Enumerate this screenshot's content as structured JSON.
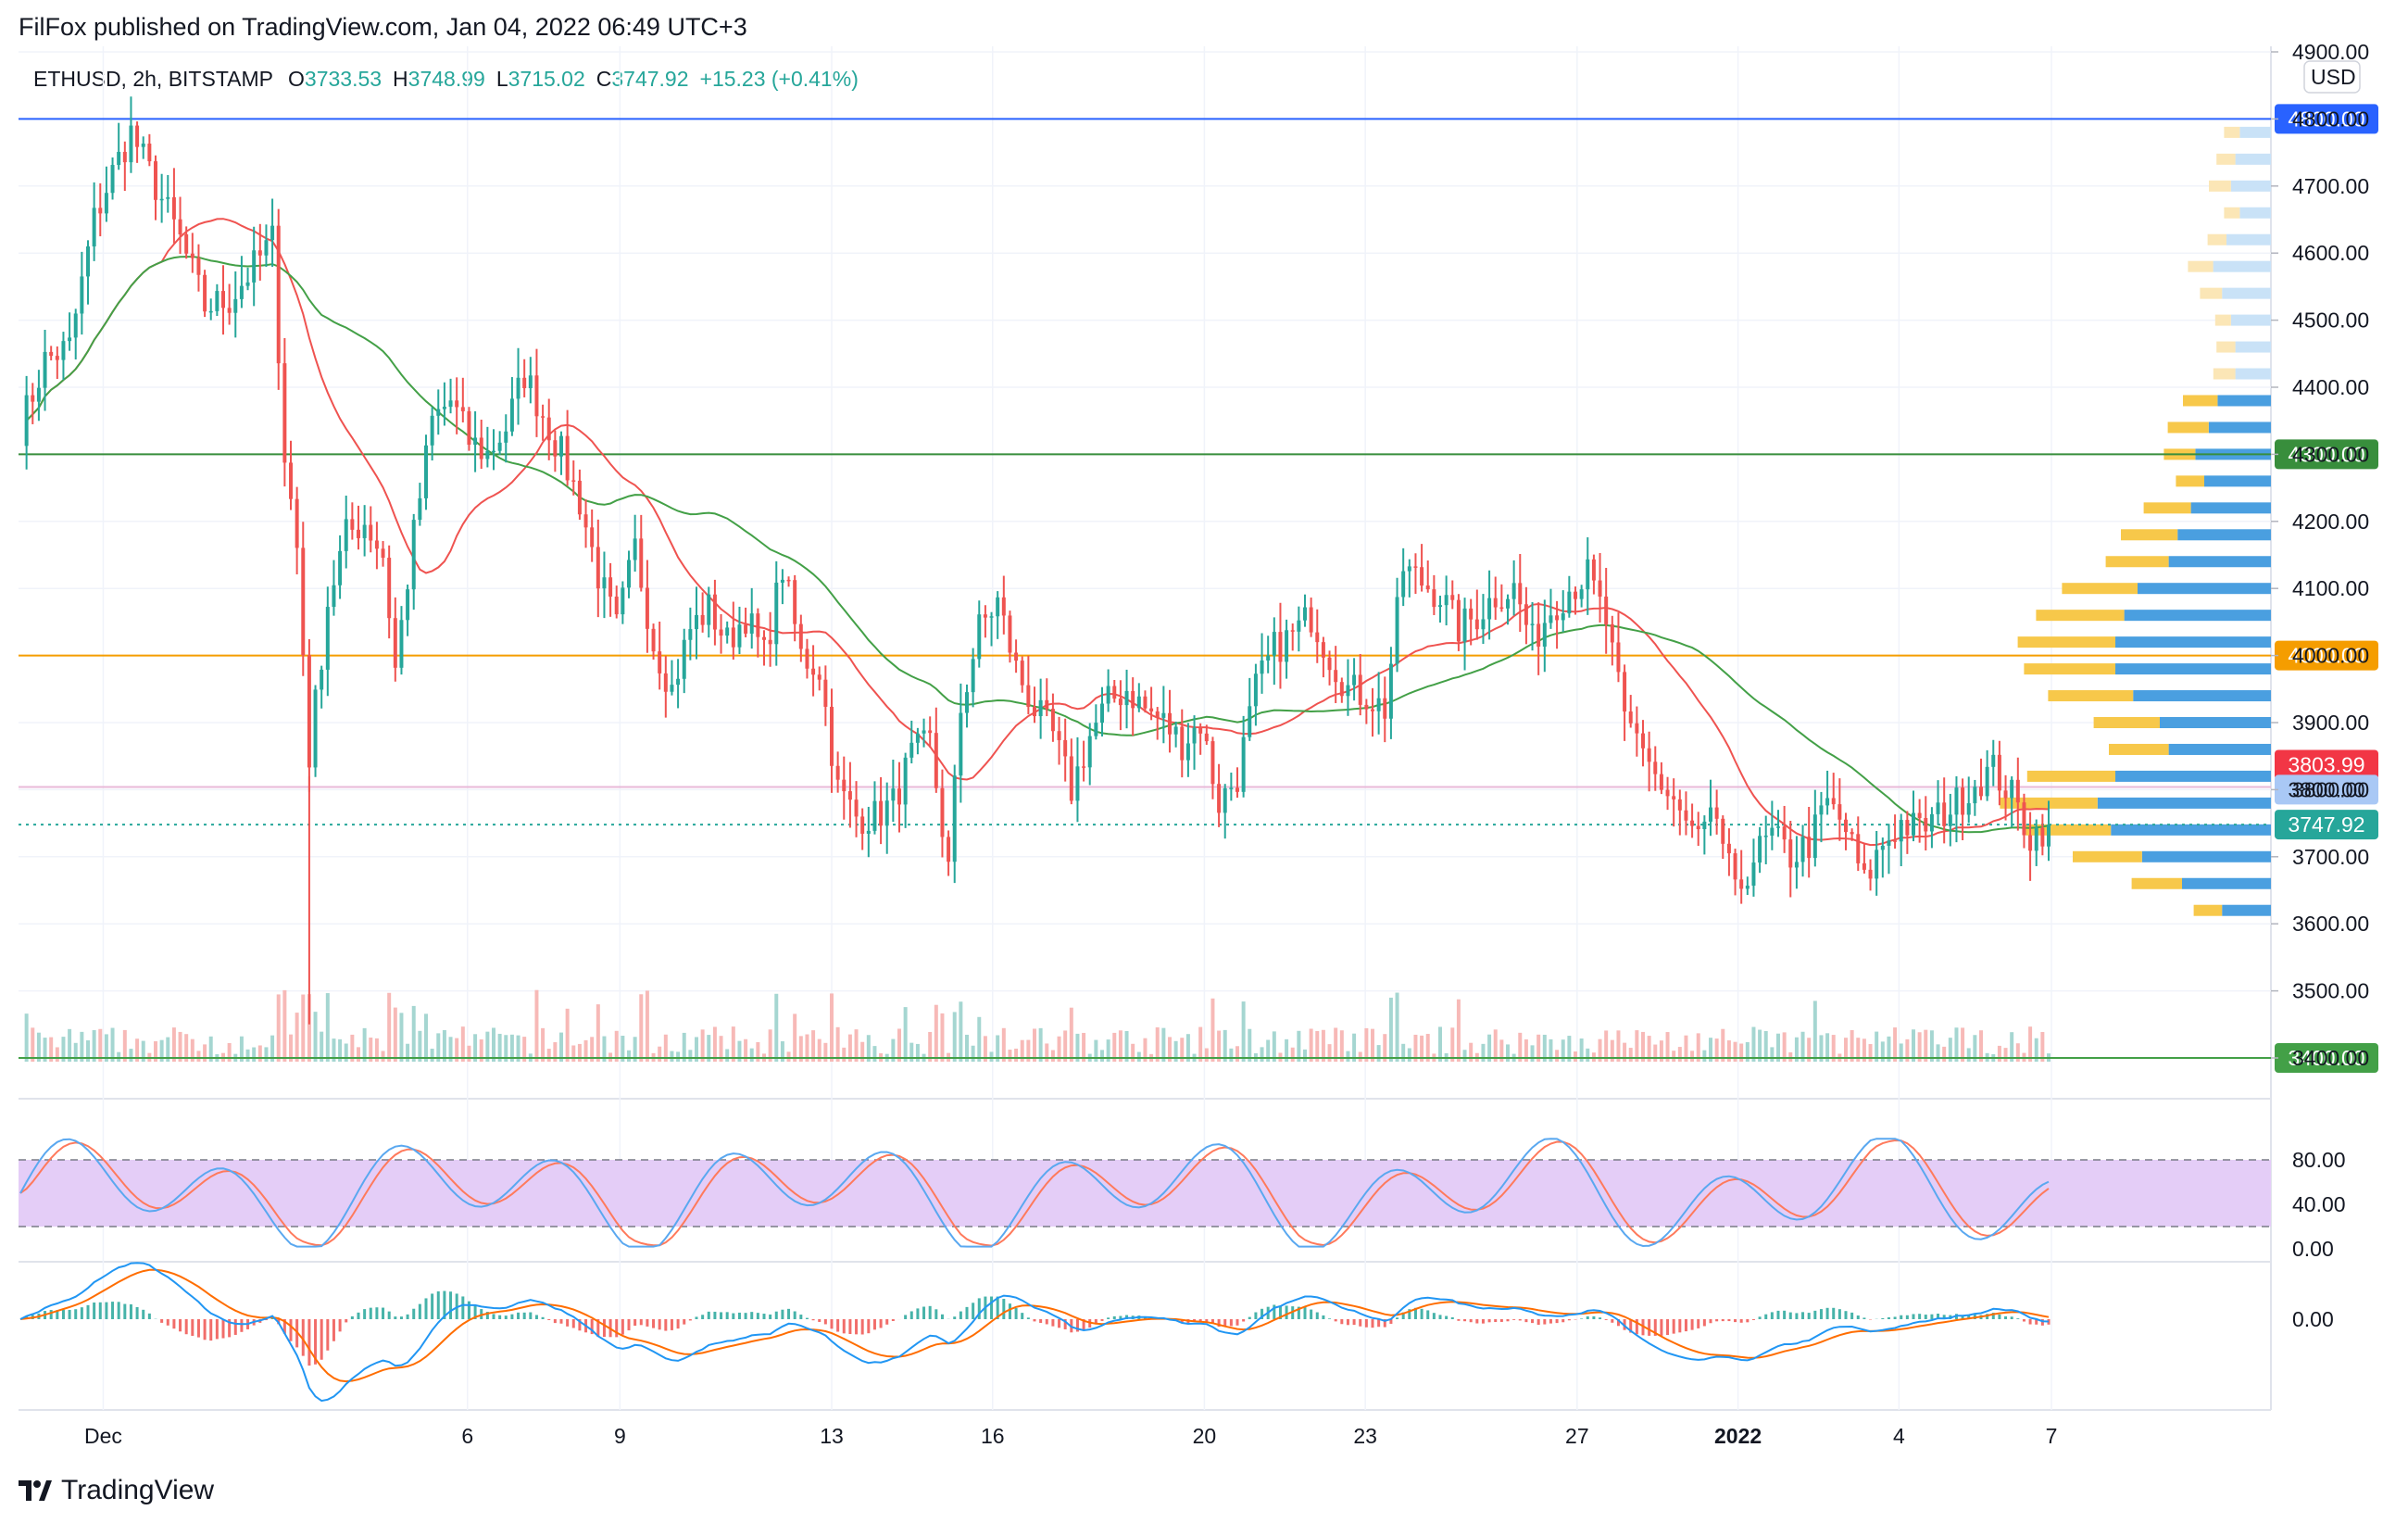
{
  "header": {
    "published": "FilFox published on TradingView.com, Jan 04, 2022 06:49 UTC+3"
  },
  "legend": {
    "symbol": "ETHUSD, 2h, BITSTAMP",
    "o_label": "O",
    "o_value": "3733.53",
    "h_label": "H",
    "h_value": "3748.99",
    "l_label": "L",
    "l_value": "3715.02",
    "c_label": "C",
    "c_value": "3747.92",
    "change": "+15.23 (+0.41%)"
  },
  "currency": "USD",
  "footer": {
    "brand": "TradingView"
  },
  "colors": {
    "up": "#26a69a",
    "down": "#ef5350",
    "ma_red": "#ef5350",
    "ma_green": "#43a047",
    "blue_line": "#2962ff",
    "green_line": "#388e3c",
    "orange_line": "#f59d00",
    "pink_line": "#e0a0c8",
    "vp_blue": "#4a9fe0",
    "vp_yellow": "#f7c84a",
    "stoch_band": "#e4cdf7",
    "macd_blue": "#2196f3",
    "macd_orange": "#ff6d00"
  },
  "chart_data": [
    {
      "type": "candlestick",
      "symbol": "ETHUSD",
      "interval": "2h",
      "ylim": [
        3400,
        4900
      ],
      "y_ticks": [
        "4900.00",
        "4800.00",
        "4700.00",
        "4600.00",
        "4500.00",
        "4400.00",
        "4300.00",
        "4200.00",
        "4100.00",
        "4000.00",
        "3900.00",
        "3800.00",
        "3700.00",
        "3600.00",
        "3500.00",
        "3400.00"
      ],
      "x_ticks": [
        "Dec",
        "6",
        "9",
        "13",
        "16",
        "20",
        "23",
        "27",
        "2022",
        "4",
        "7"
      ],
      "horizontal_levels": [
        {
          "price": 4800,
          "label": "4800.00",
          "color": "#2962ff"
        },
        {
          "price": 4300,
          "label": "4300.00",
          "color": "#388e3c"
        },
        {
          "price": 4000,
          "label": "4000.00",
          "color": "#f59d00"
        },
        {
          "price": 3803.99,
          "label": "3803.99",
          "color": "#f23645"
        },
        {
          "price": 3800,
          "label": "3800.00",
          "color": "#a9c8f5"
        },
        {
          "price": 3747.92,
          "label": "3747.92",
          "color": "#26a69a"
        },
        {
          "price": 3400,
          "label": "3400.00",
          "color": "#43a047"
        }
      ],
      "price_path": [
        {
          "t": 0,
          "p": 4340
        },
        {
          "t": 4,
          "p": 4440
        },
        {
          "t": 8,
          "p": 4460
        },
        {
          "t": 12,
          "p": 4650
        },
        {
          "t": 15,
          "p": 4720
        },
        {
          "t": 18,
          "p": 4780
        },
        {
          "t": 22,
          "p": 4700
        },
        {
          "t": 26,
          "p": 4620
        },
        {
          "t": 30,
          "p": 4520
        },
        {
          "t": 34,
          "p": 4530
        },
        {
          "t": 38,
          "p": 4580
        },
        {
          "t": 41,
          "p": 4620
        },
        {
          "t": 43,
          "p": 4300
        },
        {
          "t": 45,
          "p": 4160
        },
        {
          "t": 47,
          "p": 3850
        },
        {
          "t": 50,
          "p": 4080
        },
        {
          "t": 53,
          "p": 4180
        },
        {
          "t": 56,
          "p": 4200
        },
        {
          "t": 59,
          "p": 4150
        },
        {
          "t": 61,
          "p": 3980
        },
        {
          "t": 64,
          "p": 4180
        },
        {
          "t": 67,
          "p": 4350
        },
        {
          "t": 70,
          "p": 4380
        },
        {
          "t": 73,
          "p": 4320
        },
        {
          "t": 76,
          "p": 4300
        },
        {
          "t": 79,
          "p": 4340
        },
        {
          "t": 82,
          "p": 4420
        },
        {
          "t": 85,
          "p": 4360
        },
        {
          "t": 88,
          "p": 4300
        },
        {
          "t": 91,
          "p": 4230
        },
        {
          "t": 94,
          "p": 4120
        },
        {
          "t": 97,
          "p": 4040
        },
        {
          "t": 100,
          "p": 4160
        },
        {
          "t": 103,
          "p": 4020
        },
        {
          "t": 106,
          "p": 3950
        },
        {
          "t": 109,
          "p": 4040
        },
        {
          "t": 112,
          "p": 4070
        },
        {
          "t": 115,
          "p": 4020
        },
        {
          "t": 118,
          "p": 4060
        },
        {
          "t": 121,
          "p": 4000
        },
        {
          "t": 124,
          "p": 4130
        },
        {
          "t": 127,
          "p": 4000
        },
        {
          "t": 130,
          "p": 3980
        },
        {
          "t": 133,
          "p": 3800
        },
        {
          "t": 136,
          "p": 3760
        },
        {
          "t": 139,
          "p": 3760
        },
        {
          "t": 142,
          "p": 3780
        },
        {
          "t": 145,
          "p": 3850
        },
        {
          "t": 148,
          "p": 3870
        },
        {
          "t": 151,
          "p": 3680
        },
        {
          "t": 153,
          "p": 3920
        },
        {
          "t": 156,
          "p": 4040
        },
        {
          "t": 159,
          "p": 4080
        },
        {
          "t": 162,
          "p": 3980
        },
        {
          "t": 165,
          "p": 3920
        },
        {
          "t": 168,
          "p": 3880
        },
        {
          "t": 171,
          "p": 3800
        },
        {
          "t": 174,
          "p": 3880
        },
        {
          "t": 177,
          "p": 3930
        },
        {
          "t": 180,
          "p": 3950
        },
        {
          "t": 183,
          "p": 3920
        },
        {
          "t": 186,
          "p": 3900
        },
        {
          "t": 189,
          "p": 3870
        },
        {
          "t": 192,
          "p": 3900
        },
        {
          "t": 195,
          "p": 3780
        },
        {
          "t": 198,
          "p": 3820
        },
        {
          "t": 201,
          "p": 3950
        },
        {
          "t": 204,
          "p": 4010
        },
        {
          "t": 207,
          "p": 4030
        },
        {
          "t": 210,
          "p": 4060
        },
        {
          "t": 213,
          "p": 4000
        },
        {
          "t": 216,
          "p": 3950
        },
        {
          "t": 219,
          "p": 3940
        },
        {
          "t": 222,
          "p": 3920
        },
        {
          "t": 225,
          "p": 4130
        },
        {
          "t": 228,
          "p": 4110
        },
        {
          "t": 231,
          "p": 4090
        },
        {
          "t": 234,
          "p": 4040
        },
        {
          "t": 237,
          "p": 4060
        },
        {
          "t": 240,
          "p": 4090
        },
        {
          "t": 243,
          "p": 4100
        },
        {
          "t": 246,
          "p": 4020
        },
        {
          "t": 249,
          "p": 4070
        },
        {
          "t": 252,
          "p": 4100
        },
        {
          "t": 255,
          "p": 4120
        },
        {
          "t": 258,
          "p": 4050
        },
        {
          "t": 261,
          "p": 3900
        },
        {
          "t": 264,
          "p": 3870
        },
        {
          "t": 267,
          "p": 3800
        },
        {
          "t": 270,
          "p": 3760
        },
        {
          "t": 273,
          "p": 3720
        },
        {
          "t": 276,
          "p": 3760
        },
        {
          "t": 279,
          "p": 3640
        },
        {
          "t": 282,
          "p": 3700
        },
        {
          "t": 285,
          "p": 3730
        },
        {
          "t": 288,
          "p": 3700
        },
        {
          "t": 291,
          "p": 3720
        },
        {
          "t": 294,
          "p": 3780
        },
        {
          "t": 297,
          "p": 3740
        },
        {
          "t": 300,
          "p": 3660
        },
        {
          "t": 303,
          "p": 3720
        },
        {
          "t": 306,
          "p": 3750
        },
        {
          "t": 309,
          "p": 3740
        },
        {
          "t": 312,
          "p": 3760
        },
        {
          "t": 315,
          "p": 3780
        },
        {
          "t": 318,
          "p": 3810
        },
        {
          "t": 321,
          "p": 3830
        },
        {
          "t": 324,
          "p": 3790
        },
        {
          "t": 327,
          "p": 3730
        },
        {
          "t": 330,
          "p": 3747.92
        }
      ],
      "volume_profile": [
        {
          "price": 4780,
          "up": 0.1,
          "down": 0.14
        },
        {
          "price": 4740,
          "up": 0.12,
          "down": 0.16
        },
        {
          "price": 4700,
          "up": 0.14,
          "down": 0.18
        },
        {
          "price": 4660,
          "up": 0.1,
          "down": 0.14
        },
        {
          "price": 4620,
          "up": 0.12,
          "down": 0.2
        },
        {
          "price": 4580,
          "up": 0.16,
          "down": 0.26
        },
        {
          "price": 4540,
          "up": 0.14,
          "down": 0.22
        },
        {
          "price": 4500,
          "up": 0.1,
          "down": 0.18
        },
        {
          "price": 4460,
          "up": 0.12,
          "down": 0.16
        },
        {
          "price": 4420,
          "up": 0.14,
          "down": 0.16
        },
        {
          "price": 4380,
          "up": 0.22,
          "down": 0.24
        },
        {
          "price": 4340,
          "up": 0.26,
          "down": 0.28
        },
        {
          "price": 4300,
          "up": 0.2,
          "down": 0.34
        },
        {
          "price": 4260,
          "up": 0.18,
          "down": 0.3
        },
        {
          "price": 4220,
          "up": 0.3,
          "down": 0.36
        },
        {
          "price": 4180,
          "up": 0.36,
          "down": 0.42
        },
        {
          "price": 4140,
          "up": 0.4,
          "down": 0.46
        },
        {
          "price": 4100,
          "up": 0.48,
          "down": 0.6
        },
        {
          "price": 4060,
          "up": 0.56,
          "down": 0.66
        },
        {
          "price": 4020,
          "up": 0.62,
          "down": 0.7
        },
        {
          "price": 3980,
          "up": 0.58,
          "down": 0.7
        },
        {
          "price": 3940,
          "up": 0.54,
          "down": 0.62
        },
        {
          "price": 3900,
          "up": 0.42,
          "down": 0.5
        },
        {
          "price": 3860,
          "up": 0.38,
          "down": 0.46
        },
        {
          "price": 3820,
          "up": 0.56,
          "down": 0.7
        },
        {
          "price": 3780,
          "up": 0.62,
          "down": 0.78
        },
        {
          "price": 3740,
          "up": 0.54,
          "down": 0.72
        },
        {
          "price": 3700,
          "up": 0.44,
          "down": 0.58
        },
        {
          "price": 3660,
          "up": 0.32,
          "down": 0.4
        },
        {
          "price": 3620,
          "up": 0.18,
          "down": 0.22
        }
      ]
    },
    {
      "type": "line",
      "name": "Stochastic RSI",
      "ylim": [
        0,
        100
      ],
      "y_ticks": [
        "80.00",
        "40.00",
        "0.00"
      ],
      "band": [
        20,
        80
      ]
    },
    {
      "type": "line",
      "name": "MACD",
      "y_ticks": [
        "0.00"
      ]
    }
  ]
}
